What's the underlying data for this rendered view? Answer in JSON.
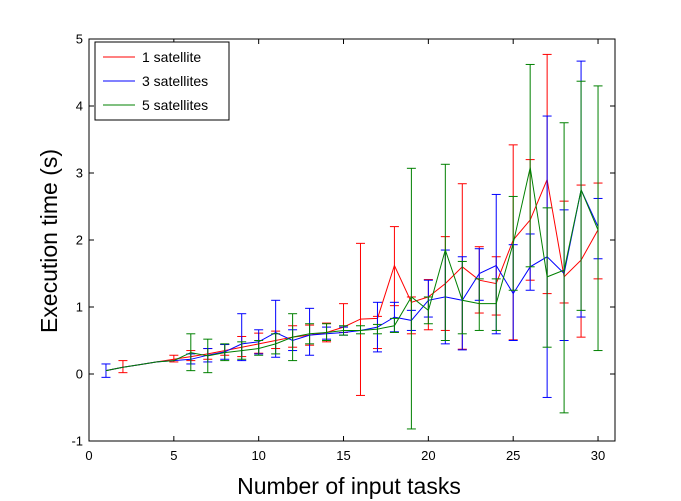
{
  "chart_data": {
    "type": "line",
    "title": "",
    "xlabel": "Number of input tasks",
    "ylabel": "Execution time (s)",
    "xlim": [
      0,
      31
    ],
    "ylim": [
      -1,
      5
    ],
    "xticks": [
      0,
      5,
      10,
      15,
      20,
      25,
      30
    ],
    "yticks": [
      -1,
      0,
      1,
      2,
      3,
      4,
      5
    ],
    "grid": false,
    "legend_position": "top-left",
    "error_bars": true,
    "series": [
      {
        "name": "1 satellite",
        "color": "#ff0000",
        "x": [
          1,
          2,
          3,
          4,
          5,
          6,
          7,
          8,
          9,
          10,
          11,
          12,
          13,
          14,
          15,
          16,
          17,
          18,
          19,
          20,
          21,
          22,
          23,
          24,
          25,
          26,
          27,
          28,
          29,
          30
        ],
        "y": [
          0.05,
          0.1,
          0.14,
          0.18,
          0.22,
          0.26,
          0.3,
          0.35,
          0.4,
          0.45,
          0.5,
          0.55,
          0.58,
          0.62,
          0.7,
          0.82,
          0.83,
          1.62,
          1.07,
          1.15,
          1.35,
          1.6,
          1.4,
          1.35,
          2.0,
          2.3,
          2.9,
          1.45,
          1.7,
          2.15
        ],
        "err_low": [
          0.05,
          0.02,
          0.14,
          0.18,
          0.18,
          0.2,
          0.22,
          0.28,
          0.26,
          0.31,
          0.38,
          0.4,
          0.43,
          0.48,
          0.62,
          -0.32,
          0.38,
          1.02,
          0.6,
          0.66,
          0.65,
          0.37,
          0.91,
          0.88,
          0.51,
          1.4,
          1.2,
          1.06,
          0.55,
          1.42
        ],
        "err_high": [
          0.05,
          0.2,
          0.14,
          0.18,
          0.28,
          0.35,
          0.38,
          0.44,
          0.56,
          0.61,
          0.64,
          0.72,
          0.73,
          0.76,
          1.05,
          1.95,
          0.86,
          2.2,
          1.15,
          1.41,
          2.05,
          2.84,
          1.9,
          1.75,
          3.42,
          3.2,
          4.77,
          2.58,
          2.82,
          2.85
        ]
      },
      {
        "name": "3 satellites",
        "color": "#0000ff",
        "x": [
          1,
          2,
          3,
          4,
          5,
          6,
          7,
          8,
          9,
          10,
          11,
          12,
          13,
          14,
          15,
          16,
          17,
          18,
          19,
          20,
          21,
          22,
          23,
          24,
          25,
          26,
          27,
          28,
          29,
          30
        ],
        "y": [
          0.05,
          0.1,
          0.14,
          0.18,
          0.2,
          0.22,
          0.28,
          0.33,
          0.45,
          0.48,
          0.62,
          0.5,
          0.58,
          0.6,
          0.62,
          0.65,
          0.7,
          0.85,
          0.8,
          1.1,
          1.15,
          1.1,
          1.5,
          1.62,
          1.2,
          1.6,
          1.75,
          1.5,
          2.75,
          2.2
        ],
        "err_low": [
          -0.05,
          0.1,
          0.14,
          0.18,
          0.2,
          0.15,
          0.18,
          0.22,
          0.2,
          0.3,
          0.25,
          0.35,
          0.28,
          0.52,
          0.58,
          0.65,
          0.33,
          0.63,
          0.65,
          0.85,
          0.45,
          0.36,
          1.1,
          0.6,
          0.5,
          1.25,
          -0.35,
          0.5,
          0.85,
          1.72
        ],
        "err_high": [
          0.15,
          0.1,
          0.14,
          0.18,
          0.2,
          0.3,
          0.38,
          0.44,
          0.9,
          0.66,
          1.1,
          0.66,
          0.98,
          0.7,
          0.7,
          0.65,
          1.07,
          1.07,
          0.95,
          1.4,
          1.85,
          1.75,
          1.87,
          2.68,
          1.93,
          2.09,
          3.85,
          2.45,
          4.67,
          2.62
        ]
      },
      {
        "name": "5 satellites",
        "color": "#008000",
        "x": [
          1,
          2,
          3,
          4,
          5,
          6,
          7,
          8,
          9,
          10,
          11,
          12,
          13,
          14,
          15,
          16,
          17,
          18,
          19,
          20,
          21,
          22,
          23,
          24,
          25,
          26,
          27,
          28,
          29,
          30
        ],
        "y": [
          0.05,
          0.1,
          0.14,
          0.18,
          0.2,
          0.32,
          0.27,
          0.32,
          0.35,
          0.38,
          0.45,
          0.55,
          0.6,
          0.62,
          0.65,
          0.65,
          0.67,
          0.72,
          1.15,
          0.95,
          1.85,
          1.1,
          1.05,
          1.05,
          1.95,
          3.08,
          1.45,
          1.55,
          2.75,
          2.15
        ],
        "err_low": [
          0.05,
          0.1,
          0.14,
          0.18,
          0.2,
          0.05,
          0.02,
          0.2,
          0.22,
          0.28,
          0.3,
          0.2,
          0.45,
          0.5,
          0.58,
          0.6,
          0.6,
          0.62,
          -0.82,
          0.75,
          0.5,
          0.6,
          0.65,
          0.65,
          1.25,
          1.6,
          0.4,
          -0.58,
          0.95,
          0.35
        ],
        "err_high": [
          0.05,
          0.1,
          0.14,
          0.18,
          0.2,
          0.6,
          0.52,
          0.45,
          0.48,
          0.5,
          0.6,
          0.9,
          0.75,
          0.75,
          0.72,
          0.72,
          0.74,
          0.83,
          3.07,
          1.15,
          3.13,
          1.68,
          1.42,
          1.42,
          2.65,
          4.62,
          2.48,
          3.75,
          4.37,
          4.3
        ]
      }
    ]
  }
}
